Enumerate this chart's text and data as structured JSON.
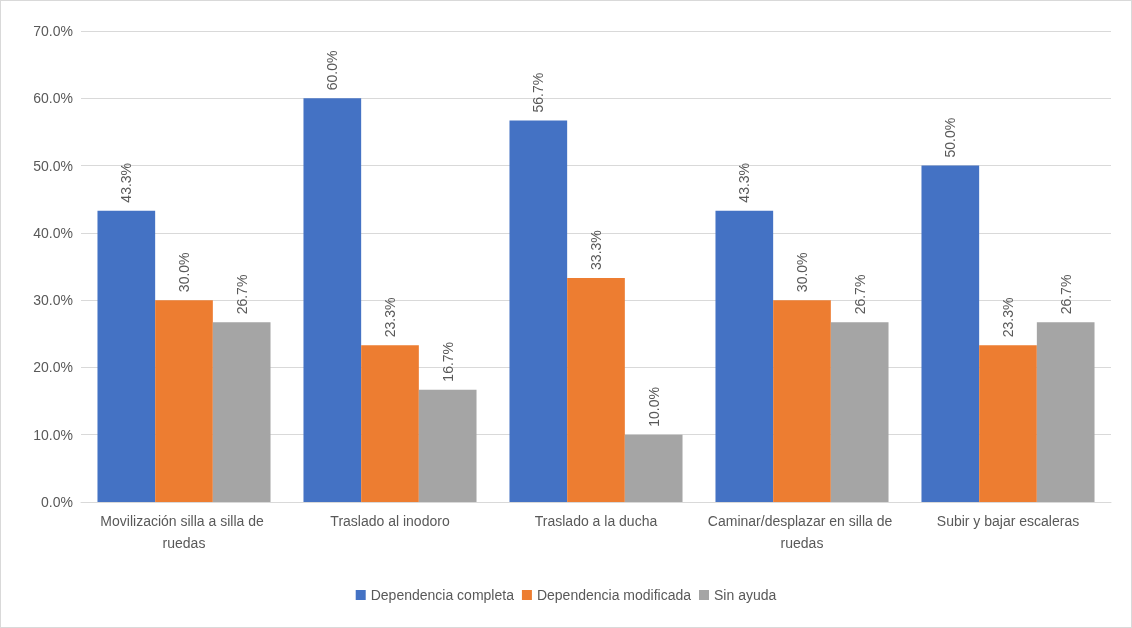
{
  "chart_data": {
    "type": "bar",
    "categories": [
      "Movilización silla a silla de ruedas",
      "Traslado al inodoro",
      "Traslado a la ducha",
      "Caminar/desplazar en silla de ruedas",
      "Subir y bajar escaleras"
    ],
    "series": [
      {
        "name": "Dependencia completa",
        "color": "#4472c4",
        "values": [
          43.3,
          60.0,
          56.7,
          43.3,
          50.0
        ],
        "value_labels": [
          "43.3%",
          "60.0%",
          "56.7%",
          "43.3%",
          "50.0%"
        ]
      },
      {
        "name": "Dependencia modificada",
        "color": "#ed7d31",
        "values": [
          30.0,
          23.3,
          33.3,
          30.0,
          23.3
        ],
        "value_labels": [
          "30.0%",
          "23.3%",
          "33.3%",
          "30.0%",
          "23.3%"
        ]
      },
      {
        "name": "Sin ayuda",
        "color": "#a5a5a5",
        "values": [
          26.7,
          16.7,
          10.0,
          26.7,
          26.7
        ],
        "value_labels": [
          "26.7%",
          "16.7%",
          "10.0%",
          "26.7%",
          "26.7%"
        ]
      }
    ],
    "ylim": [
      0,
      70
    ],
    "yticks": [
      {
        "value": 0,
        "label": "0.0%"
      },
      {
        "value": 10,
        "label": "10.0%"
      },
      {
        "value": 20,
        "label": "20.0%"
      },
      {
        "value": 30,
        "label": "30.0%"
      },
      {
        "value": 40,
        "label": "40.0%"
      },
      {
        "value": 50,
        "label": "50.0%"
      },
      {
        "value": 60,
        "label": "60.0%"
      },
      {
        "value": 70,
        "label": "70.0%"
      }
    ],
    "grid": "y",
    "legend": "bottom"
  }
}
